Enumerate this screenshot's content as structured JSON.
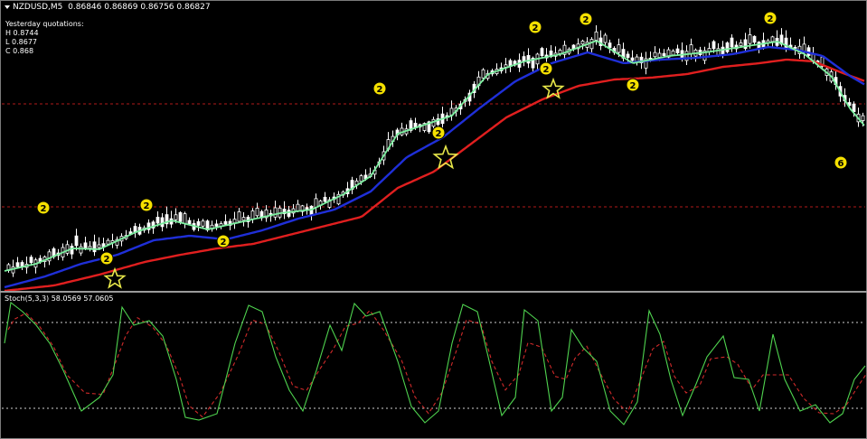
{
  "window": {
    "title": "NZDUSD,M5",
    "prices": "0.86846 0.86869 0.86756 0.86827"
  },
  "quotes": {
    "header": "Yesterday quotations:",
    "high": "H 0.8744",
    "low": "L 0.8677",
    "close": "C 0.868"
  },
  "indicator": {
    "label": "Stoch(5,3,3) 58.0569 57.0605"
  },
  "colors": {
    "background": "#000000",
    "bull_candle": "#ffffff",
    "ma_fast": "#7cf0a0",
    "ma_mid": "#1f2fd8",
    "ma_slow": "#e01f1f",
    "level_line": "#b01a1a",
    "stoch_main": "#4fd34f",
    "stoch_signal": "#d02a2a",
    "marker_fill": "#f5e000",
    "star_stroke": "#e8e84a"
  },
  "markers": {
    "signals": [
      "2",
      "2",
      "2",
      "2",
      "2",
      "2",
      "2",
      "2",
      "2",
      "2",
      "2",
      "6",
      "6"
    ],
    "stars": 3
  }
}
